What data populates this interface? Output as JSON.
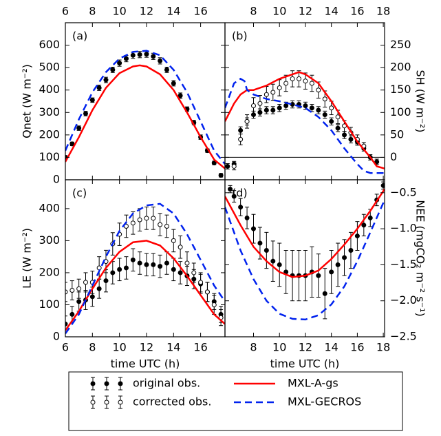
{
  "chart_data": [
    {
      "type": "line",
      "title": "(a)",
      "ylabel": "Qnet (W m⁻²)",
      "x_axis_side": "top",
      "y_axis_side": "left",
      "xlim": [
        6,
        17.8
      ],
      "xticks": [
        6,
        8,
        10,
        12,
        14,
        16
      ],
      "ylim": [
        0,
        700
      ],
      "yticks": [
        0,
        100,
        200,
        300,
        400,
        500,
        600
      ],
      "series": [
        {
          "color": "#000000",
          "marker": "filled",
          "x": [
            6,
            6.5,
            7,
            7.5,
            8,
            8.5,
            9,
            9.5,
            10,
            10.5,
            11,
            11.5,
            12,
            12.5,
            13,
            13.5,
            14,
            14.5,
            15,
            15.5,
            16,
            16.5,
            17,
            17.5
          ],
          "values": [
            100,
            160,
            230,
            295,
            355,
            410,
            445,
            490,
            520,
            540,
            555,
            558,
            560,
            550,
            530,
            490,
            430,
            375,
            315,
            255,
            190,
            130,
            75,
            20
          ],
          "errors": [
            8,
            8,
            10,
            10,
            10,
            12,
            12,
            12,
            14,
            14,
            14,
            14,
            14,
            14,
            14,
            12,
            12,
            12,
            10,
            10,
            10,
            8,
            8,
            8
          ]
        },
        {
          "color": "#ff0000",
          "linestyle": "solid",
          "x": [
            6,
            7,
            8,
            9,
            10,
            11,
            11.5,
            12,
            13,
            14,
            15,
            16,
            17,
            17.8
          ],
          "values": [
            80,
            190,
            310,
            410,
            475,
            505,
            510,
            505,
            470,
            400,
            300,
            190,
            90,
            50
          ]
        },
        {
          "color": "#0022ee",
          "linestyle": "dashed",
          "x": [
            6,
            7,
            8,
            9,
            10,
            11,
            12,
            13,
            14,
            15,
            16,
            17,
            17.8
          ],
          "values": [
            130,
            270,
            390,
            480,
            540,
            570,
            575,
            555,
            490,
            390,
            260,
            130,
            70
          ]
        }
      ]
    },
    {
      "type": "line",
      "title": "(b)",
      "ylabel": "SH (W m⁻²)",
      "x_axis_side": "top",
      "y_axis_side": "right",
      "hline": 0,
      "xlim": [
        5.8,
        18.1
      ],
      "xticks": [
        8,
        10,
        12,
        14,
        16,
        18
      ],
      "ylim": [
        -50,
        300
      ],
      "yticks": [
        0,
        50,
        100,
        150,
        200,
        250
      ],
      "series": [
        {
          "name": "original obs.",
          "color": "#000000",
          "marker": "filled",
          "x": [
            6,
            6.5,
            7,
            7.5,
            8,
            8.5,
            9,
            9.5,
            10,
            10.5,
            11,
            11.5,
            12,
            12.5,
            13,
            13.5,
            14,
            14.5,
            15,
            15.5,
            16,
            16.5,
            17,
            17.5
          ],
          "values": [
            -20,
            -15,
            60,
            80,
            95,
            100,
            105,
            105,
            110,
            115,
            118,
            118,
            115,
            110,
            105,
            95,
            80,
            65,
            50,
            40,
            35,
            20,
            0,
            -10
          ],
          "errors": [
            6,
            6,
            8,
            8,
            8,
            8,
            8,
            8,
            8,
            8,
            8,
            8,
            8,
            8,
            8,
            8,
            8,
            8,
            8,
            8,
            8,
            6,
            6,
            6
          ]
        },
        {
          "name": "corrected obs.",
          "color": "#000000",
          "marker": "open",
          "x": [
            6.5,
            7,
            7.5,
            8,
            8.5,
            9,
            9.5,
            10,
            10.5,
            11,
            11.5,
            12,
            12.5,
            13,
            13.5,
            14,
            14.5,
            15,
            15.5,
            16,
            16.5
          ],
          "values": [
            -20,
            40,
            80,
            115,
            120,
            140,
            145,
            155,
            165,
            175,
            175,
            170,
            165,
            150,
            130,
            110,
            90,
            70,
            55,
            40,
            25
          ],
          "errors": [
            8,
            12,
            15,
            18,
            18,
            18,
            18,
            18,
            18,
            18,
            18,
            18,
            18,
            18,
            18,
            15,
            15,
            12,
            12,
            10,
            8
          ]
        },
        {
          "name": "MXL-A-gs",
          "color": "#ff0000",
          "linestyle": "solid",
          "x": [
            5.8,
            6.5,
            7,
            7.5,
            8,
            9,
            10,
            11,
            11.5,
            12,
            13,
            14,
            15,
            16,
            17,
            17.5,
            18.1
          ],
          "values": [
            80,
            120,
            140,
            150,
            150,
            160,
            175,
            185,
            190,
            185,
            165,
            125,
            80,
            35,
            0,
            -20,
            -25
          ]
        },
        {
          "name": "MXL-GECROS",
          "color": "#0022ee",
          "linestyle": "dashed",
          "x": [
            5.8,
            6.5,
            7,
            7.3,
            7.5,
            8,
            9,
            10,
            11,
            12,
            13,
            14,
            15,
            16,
            16.5,
            17,
            18.1
          ],
          "values": [
            110,
            165,
            175,
            170,
            150,
            140,
            130,
            125,
            118,
            110,
            90,
            60,
            20,
            -15,
            -30,
            -35,
            -35
          ]
        }
      ]
    },
    {
      "type": "line",
      "title": "(c)",
      "ylabel": "LE (W m⁻²)",
      "xlabel": "time UTC (h)",
      "x_axis_side": "bottom",
      "y_axis_side": "left",
      "xlim": [
        6,
        17.8
      ],
      "xticks": [
        6,
        8,
        10,
        12,
        14,
        16
      ],
      "ylim": [
        0,
        490
      ],
      "yticks": [
        0,
        100,
        200,
        300,
        400
      ],
      "series": [
        {
          "color": "#000000",
          "marker": "filled",
          "x": [
            6,
            6.5,
            7,
            7.5,
            8,
            8.5,
            9,
            9.5,
            10,
            10.5,
            11,
            11.5,
            12,
            12.5,
            13,
            13.5,
            14,
            14.5,
            15,
            15.5,
            16,
            16.5,
            17,
            17.5
          ],
          "values": [
            40,
            70,
            110,
            115,
            125,
            150,
            175,
            200,
            210,
            215,
            240,
            230,
            225,
            225,
            220,
            230,
            210,
            200,
            190,
            180,
            165,
            140,
            110,
            70
          ],
          "errors": [
            25,
            25,
            30,
            30,
            30,
            30,
            35,
            35,
            35,
            35,
            35,
            35,
            35,
            35,
            35,
            35,
            35,
            35,
            30,
            30,
            30,
            30,
            25,
            25
          ]
        },
        {
          "color": "#000000",
          "marker": "open",
          "x": [
            6,
            6.5,
            7,
            7.5,
            8,
            8.5,
            9,
            9.5,
            10,
            10.5,
            11,
            11.5,
            12,
            12.5,
            13,
            13.5,
            14,
            14.5,
            15,
            15.5,
            16,
            16.5,
            17,
            17.5
          ],
          "values": [
            140,
            145,
            150,
            170,
            170,
            215,
            235,
            290,
            320,
            345,
            355,
            365,
            370,
            370,
            350,
            345,
            300,
            280,
            230,
            200,
            170,
            140,
            100,
            60
          ],
          "errors": [
            30,
            30,
            30,
            30,
            35,
            35,
            35,
            35,
            35,
            35,
            35,
            35,
            35,
            35,
            35,
            35,
            35,
            35,
            35,
            30,
            30,
            30,
            30,
            25
          ]
        },
        {
          "color": "#ff0000",
          "linestyle": "solid",
          "x": [
            6,
            7,
            8,
            9,
            10,
            11,
            12,
            13,
            14,
            15,
            16,
            17,
            17.8
          ],
          "values": [
            20,
            80,
            150,
            215,
            265,
            295,
            300,
            285,
            245,
            190,
            130,
            70,
            40
          ]
        },
        {
          "color": "#0022ee",
          "linestyle": "dashed",
          "x": [
            6,
            7,
            8,
            9,
            10,
            11,
            12,
            13,
            14,
            15,
            16,
            17,
            17.8
          ],
          "values": [
            10,
            70,
            160,
            250,
            330,
            385,
            410,
            415,
            385,
            320,
            240,
            160,
            110
          ]
        }
      ]
    },
    {
      "type": "line",
      "title": "(d)",
      "ylabel": "NEE (mgCO₂ m⁻² s⁻¹)",
      "xlabel": "time UTC (h)",
      "x_axis_side": "bottom",
      "y_axis_side": "right",
      "xlim": [
        5.8,
        18.1
      ],
      "xticks": [
        8,
        10,
        12,
        14,
        16,
        18
      ],
      "ylim": [
        -2.5,
        -0.32
      ],
      "yticks": [
        {
          "value": -2.5,
          "label": "−2.5"
        },
        {
          "value": -2,
          "label": "−2.0"
        },
        {
          "value": -1.5,
          "label": "−1.5"
        },
        {
          "value": -1,
          "label": "−1.0"
        },
        {
          "value": -0.5,
          "label": "−0.5"
        }
      ],
      "series": [
        {
          "color": "#000000",
          "marker": "filled",
          "x": [
            6.2,
            6.5,
            7,
            7.5,
            8,
            8.5,
            9,
            9.5,
            10,
            10.5,
            11,
            11.5,
            12,
            12.5,
            13,
            13.5,
            14,
            14.5,
            15,
            15.5,
            16,
            16.5,
            17,
            17.5,
            18
          ],
          "values": [
            -0.45,
            -0.55,
            -0.7,
            -0.85,
            -1.0,
            -1.2,
            -1.3,
            -1.45,
            -1.5,
            -1.6,
            -1.65,
            -1.65,
            -1.65,
            -1.6,
            -1.65,
            -1.9,
            -1.6,
            -1.5,
            -1.4,
            -1.3,
            -1.1,
            -0.95,
            -0.85,
            -0.6,
            -0.4
          ],
          "errors": [
            0.05,
            0.08,
            0.12,
            0.15,
            0.2,
            0.22,
            0.25,
            0.28,
            0.3,
            0.3,
            0.35,
            0.35,
            0.35,
            0.35,
            0.3,
            0.35,
            0.3,
            0.3,
            0.25,
            0.25,
            0.2,
            0.15,
            0.12,
            0.08,
            0.05
          ]
        },
        {
          "color": "#ff0000",
          "linestyle": "solid",
          "x": [
            5.8,
            7,
            8,
            9,
            10,
            11,
            12,
            13,
            14,
            15,
            16,
            17,
            18.1
          ],
          "values": [
            -0.55,
            -0.95,
            -1.25,
            -1.45,
            -1.6,
            -1.67,
            -1.65,
            -1.58,
            -1.42,
            -1.22,
            -1.0,
            -0.75,
            -0.45
          ]
        },
        {
          "color": "#0022ee",
          "linestyle": "dashed",
          "x": [
            5.8,
            7,
            8,
            9,
            10,
            11,
            12,
            13,
            14,
            15,
            16,
            17,
            18.1
          ],
          "values": [
            -0.7,
            -1.3,
            -1.7,
            -2.0,
            -2.18,
            -2.25,
            -2.26,
            -2.2,
            -2.05,
            -1.8,
            -1.45,
            -1.05,
            -0.6
          ]
        }
      ]
    }
  ]
}
